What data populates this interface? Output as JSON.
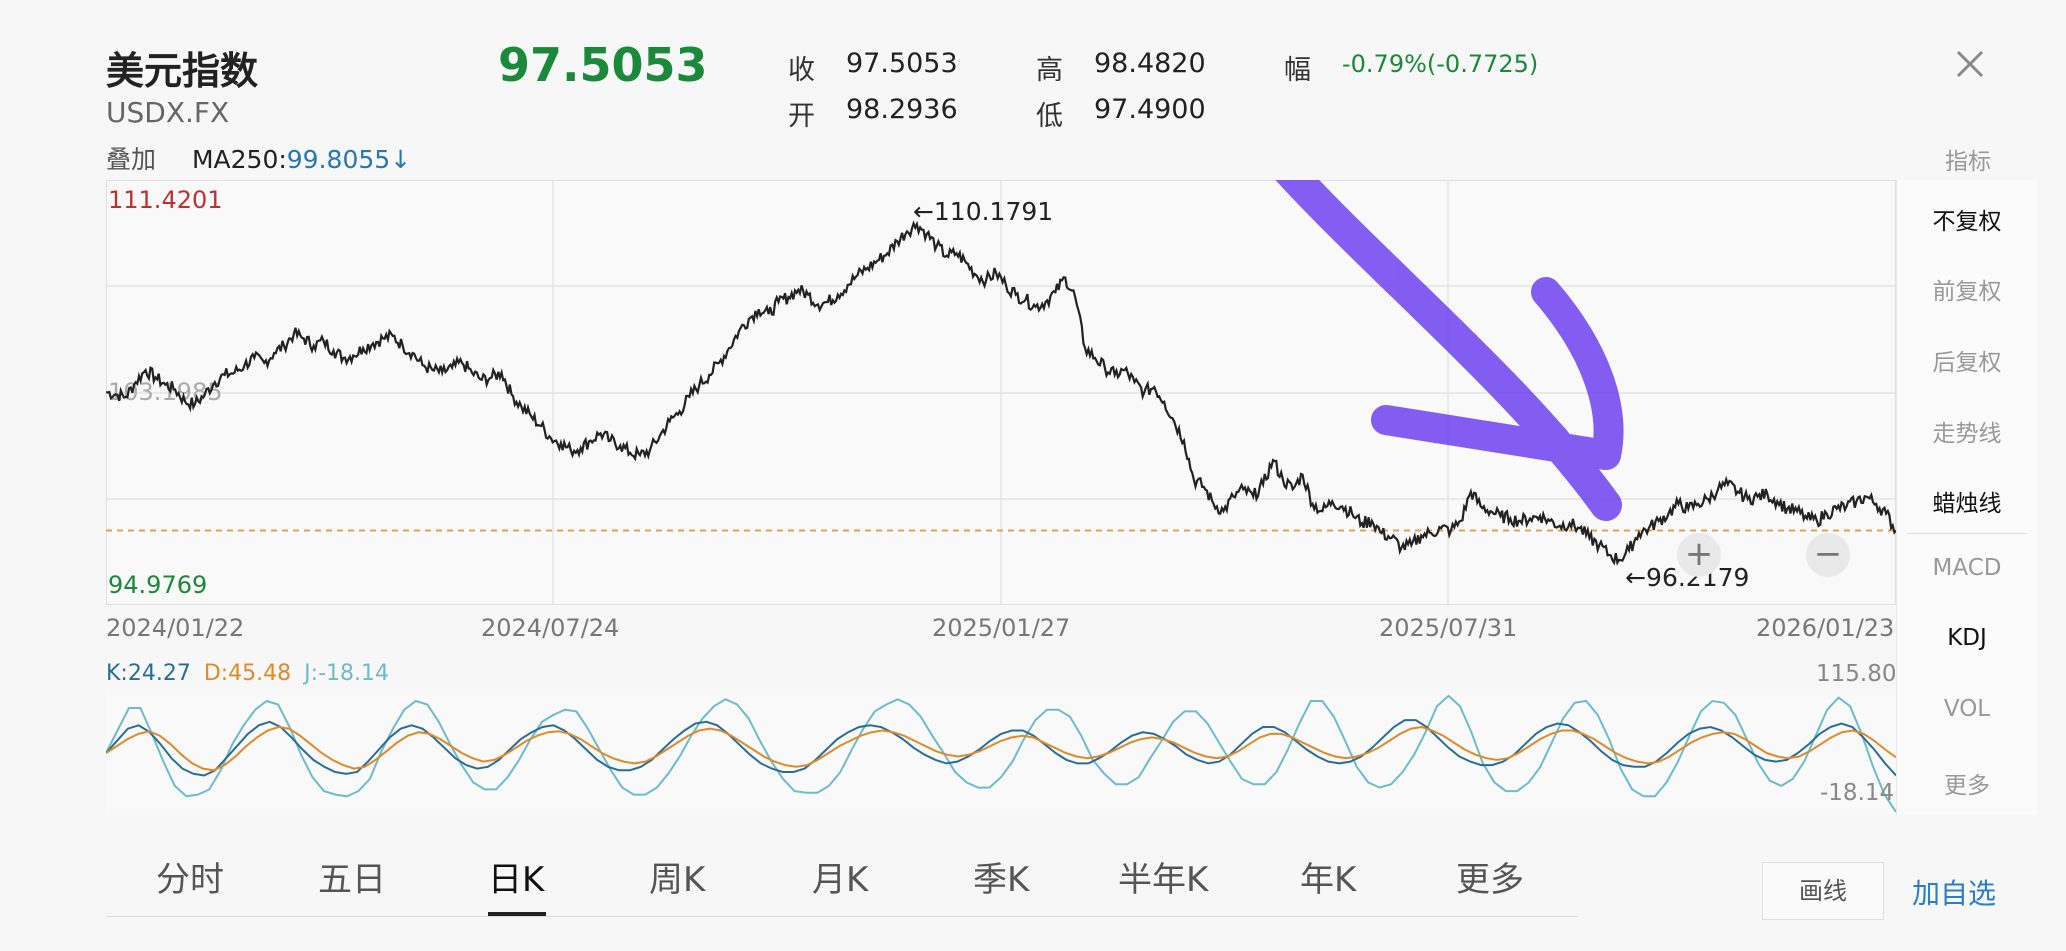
{
  "header": {
    "title": "美元指数",
    "symbol": "USDX.FX",
    "price": "97.5053",
    "quote": {
      "close_label": "收",
      "close": "97.5053",
      "open_label": "开",
      "open": "98.2936",
      "high_label": "高",
      "high": "98.4820",
      "low_label": "低",
      "low": "97.4900",
      "change_label": "幅",
      "change": "-0.79%(-0.7725)"
    }
  },
  "overlay": {
    "label": "叠加",
    "ma_name": "MA250:",
    "ma_value": "99.8055↓"
  },
  "chart": {
    "ymax_label": "111.4201",
    "ymin_label": "94.9769",
    "mid_label": "103.1985",
    "high_marker": "←110.1791",
    "low_marker": "←96.2179",
    "dates": [
      "2024/01/22",
      "2024/07/24",
      "2025/01/27",
      "2025/07/31",
      "2026/01/23"
    ]
  },
  "chart_data": {
    "type": "line",
    "title": "",
    "series": [
      {
        "name": "",
        "values": [
          103.2,
          103.1,
          103.0,
          103.6,
          104.1,
          103.8,
          103.5,
          103.3,
          102.8,
          102.7,
          103.1,
          103.6,
          103.9,
          104.0,
          104.3,
          104.6,
          104.4,
          104.8,
          105.1,
          105.6,
          105.4,
          105.1,
          105.3,
          104.9,
          104.6,
          104.7,
          105.0,
          105.2,
          105.4,
          105.5,
          105.1,
          104.8,
          104.3,
          104.1,
          104.0,
          104.2,
          104.4,
          104.0,
          103.7,
          103.8,
          104.0,
          103.1,
          102.6,
          102.2,
          101.8,
          101.3,
          101.1,
          100.8,
          100.9,
          101.2,
          101.5,
          101.2,
          101.0,
          100.7,
          100.6,
          100.8,
          101.4,
          102.0,
          102.4,
          103.0,
          103.5,
          103.9,
          104.4,
          105.0,
          105.7,
          106.2,
          106.6,
          106.4,
          106.9,
          107.1,
          107.4,
          107.2,
          106.8,
          106.9,
          107.2,
          107.6,
          108.0,
          108.3,
          108.6,
          108.9,
          109.4,
          109.8,
          110.1,
          109.7,
          109.2,
          108.8,
          108.9,
          108.5,
          108.0,
          107.8,
          108.1,
          107.6,
          107.2,
          107.0,
          106.7,
          106.9,
          107.3,
          107.9,
          107.1,
          105.0,
          104.6,
          104.2,
          103.9,
          104.1,
          103.6,
          103.2,
          103.4,
          102.8,
          102.0,
          101.2,
          99.6,
          99.3,
          98.6,
          98.3,
          98.9,
          99.2,
          98.9,
          99.4,
          100.4,
          99.6,
          99.2,
          99.8,
          98.6,
          98.3,
          98.7,
          98.5,
          98.2,
          97.8,
          97.9,
          97.4,
          97.2,
          96.8,
          96.9,
          97.3,
          97.4,
          97.6,
          97.5,
          97.9,
          99.1,
          98.5,
          98.3,
          98.1,
          98.0,
          97.9,
          98.0,
          98.1,
          97.9,
          97.7,
          97.8,
          97.6,
          97.2,
          96.9,
          96.5,
          96.3,
          96.7,
          97.4,
          97.6,
          97.9,
          98.2,
          98.6,
          98.4,
          98.6,
          98.8,
          99.2,
          99.4,
          99.1,
          98.8,
          98.9,
          99.0,
          98.7,
          98.4,
          98.3,
          98.0,
          97.9,
          98.2,
          98.4,
          98.5,
          98.7,
          98.9,
          98.6,
          98.2,
          97.5
        ]
      }
    ],
    "x_start": "2024/01/22",
    "x_end": "2026/01/23",
    "ylim": [
      94.9769,
      111.4201
    ],
    "reference_line": 97.5053,
    "grid": true
  },
  "kdj": {
    "k_label": "K:24.27",
    "d_label": "D:45.48",
    "j_label": "J:-18.14",
    "ymax_label": "115.80",
    "ymin_label": "-18.14",
    "ylim": [
      -18.14,
      115.8
    ],
    "colors": {
      "k": "#2a6e98",
      "d": "#e08a2a",
      "j": "#6cbccc"
    },
    "d_values": [
      50,
      58,
      66,
      72,
      75,
      70,
      60,
      48,
      38,
      32,
      30,
      36,
      46,
      58,
      68,
      76,
      80,
      78,
      70,
      60,
      50,
      42,
      36,
      32,
      34,
      42,
      52,
      62,
      70,
      74,
      72,
      66,
      58,
      50,
      44,
      40,
      42,
      48,
      56,
      64,
      70,
      74,
      75,
      72,
      66,
      58,
      50,
      44,
      40,
      38,
      40,
      46,
      54,
      62,
      70,
      76,
      78,
      76,
      70,
      62,
      54,
      46,
      40,
      36,
      34,
      36,
      42,
      50,
      58,
      64,
      70,
      74,
      76,
      74,
      70,
      64,
      58,
      52,
      48,
      46,
      48,
      52,
      58,
      64,
      68,
      70,
      68,
      62,
      56,
      50,
      46,
      44,
      46,
      50,
      56,
      62,
      66,
      68,
      66,
      62,
      56,
      50,
      46,
      44,
      46,
      52,
      60,
      68,
      72,
      72,
      68,
      62,
      56,
      50,
      46,
      44,
      46,
      50,
      56,
      64,
      72,
      78,
      80,
      76,
      70,
      62,
      54,
      48,
      44,
      42,
      44,
      50,
      58,
      66,
      72,
      76,
      76,
      72,
      66,
      58,
      50,
      44,
      40,
      38,
      40,
      46,
      54,
      62,
      68,
      72,
      74,
      72,
      66,
      58,
      50,
      46,
      44,
      46,
      52,
      60,
      68,
      74,
      76,
      72,
      64,
      54,
      45
    ],
    "k_values": [
      50,
      64,
      78,
      82,
      74,
      60,
      44,
      32,
      26,
      24,
      30,
      44,
      58,
      72,
      82,
      86,
      80,
      68,
      54,
      42,
      34,
      28,
      26,
      28,
      40,
      54,
      68,
      78,
      82,
      78,
      68,
      56,
      44,
      36,
      32,
      34,
      42,
      54,
      66,
      74,
      80,
      82,
      76,
      66,
      54,
      42,
      34,
      30,
      30,
      34,
      42,
      54,
      66,
      76,
      84,
      86,
      82,
      72,
      60,
      48,
      38,
      32,
      28,
      28,
      32,
      42,
      54,
      66,
      74,
      80,
      82,
      80,
      74,
      66,
      56,
      48,
      42,
      38,
      40,
      46,
      54,
      64,
      72,
      76,
      76,
      70,
      60,
      50,
      42,
      38,
      38,
      44,
      52,
      62,
      70,
      74,
      72,
      66,
      58,
      48,
      42,
      38,
      40,
      48,
      60,
      72,
      80,
      80,
      74,
      64,
      54,
      46,
      40,
      38,
      40,
      46,
      56,
      68,
      80,
      88,
      88,
      80,
      68,
      56,
      46,
      40,
      36,
      36,
      40,
      48,
      60,
      72,
      80,
      84,
      82,
      74,
      64,
      52,
      42,
      36,
      34,
      34,
      40,
      50,
      62,
      72,
      78,
      80,
      76,
      68,
      58,
      48,
      42,
      40,
      42,
      50,
      60,
      72,
      80,
      84,
      80,
      68,
      54,
      38,
      24
    ],
    "j_values": [
      50,
      76,
      102,
      102,
      72,
      40,
      12,
      0,
      2,
      8,
      30,
      60,
      82,
      100,
      110,
      106,
      80,
      48,
      22,
      6,
      2,
      0,
      6,
      20,
      52,
      78,
      100,
      110,
      106,
      86,
      60,
      36,
      16,
      8,
      8,
      22,
      42,
      66,
      86,
      94,
      100,
      98,
      78,
      54,
      30,
      10,
      2,
      2,
      10,
      26,
      46,
      70,
      90,
      104,
      112,
      106,
      90,
      64,
      40,
      20,
      6,
      4,
      4,
      12,
      28,
      54,
      78,
      98,
      106,
      112,
      106,
      92,
      70,
      50,
      28,
      16,
      10,
      10,
      22,
      40,
      66,
      88,
      100,
      100,
      92,
      70,
      42,
      26,
      14,
      14,
      22,
      44,
      64,
      86,
      98,
      98,
      84,
      62,
      40,
      20,
      14,
      14,
      28,
      54,
      84,
      110,
      110,
      92,
      64,
      34,
      16,
      10,
      14,
      28,
      48,
      74,
      104,
      116,
      104,
      74,
      38,
      16,
      6,
      6,
      16,
      34,
      62,
      90,
      108,
      110,
      94,
      66,
      32,
      8,
      0,
      0,
      16,
      40,
      70,
      98,
      110,
      108,
      94,
      66,
      38,
      18,
      12,
      20,
      40,
      70,
      100,
      114,
      104,
      72,
      34,
      2,
      -18
    ]
  },
  "side_menu": {
    "header": "指标",
    "items": [
      "不复权",
      "前复权",
      "后复权",
      "走势线",
      "蜡烛线",
      "MACD",
      "KDJ",
      "VOL",
      "更多"
    ]
  },
  "tabs": [
    "分时",
    "五日",
    "日K",
    "周K",
    "月K",
    "季K",
    "半年K",
    "年K",
    "更多"
  ],
  "footer": {
    "draw_label": "画线",
    "watch_label": "加自选"
  },
  "zoom": {
    "in_icon": "+",
    "out_icon": "−"
  },
  "colors": {
    "up": "#c03030",
    "down": "#1a8a3a",
    "accent": "#2a7ecb",
    "price_line": "#222222",
    "ref_line": "#e8a050",
    "annotation": "#6a3cf0"
  }
}
